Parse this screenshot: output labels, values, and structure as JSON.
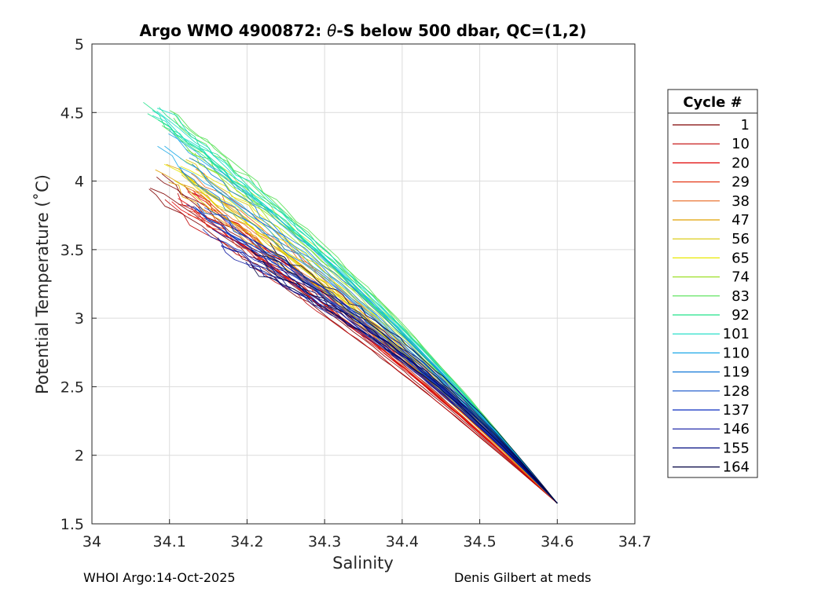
{
  "chart_data": {
    "type": "line",
    "title_prefix": "Argo WMO 4900872: ",
    "title_theta": "θ",
    "title_suffix": "-S below 500 dbar,  QC=(1,2)",
    "xlabel": "Salinity",
    "ylabel": "Potential Temperature (˚C)",
    "xlim": [
      34,
      34.7
    ],
    "ylim": [
      1.5,
      5
    ],
    "xticks": [
      "34",
      "34.1",
      "34.2",
      "34.3",
      "34.4",
      "34.5",
      "34.6",
      "34.7"
    ],
    "yticks": [
      "1.5",
      "2",
      "2.5",
      "3",
      "3.5",
      "4",
      "4.5",
      "5"
    ],
    "grid": true,
    "legend_title": "Cycle #",
    "legend_position": "right",
    "legend": [
      {
        "label": "1",
        "color": "#7f0000"
      },
      {
        "label": "10",
        "color": "#c00000"
      },
      {
        "label": "20",
        "color": "#e00000"
      },
      {
        "label": "29",
        "color": "#e53a1a"
      },
      {
        "label": "38",
        "color": "#e8661f"
      },
      {
        "label": "47",
        "color": "#e0a000"
      },
      {
        "label": "56",
        "color": "#d8c800"
      },
      {
        "label": "65",
        "color": "#e8e800"
      },
      {
        "label": "74",
        "color": "#9ee02a"
      },
      {
        "label": "83",
        "color": "#50e050"
      },
      {
        "label": "92",
        "color": "#20e28a"
      },
      {
        "label": "101",
        "color": "#12dcc4"
      },
      {
        "label": "110",
        "color": "#1aa8e8"
      },
      {
        "label": "119",
        "color": "#1478d8"
      },
      {
        "label": "128",
        "color": "#1050c8"
      },
      {
        "label": "137",
        "color": "#0a2cc0"
      },
      {
        "label": "146",
        "color": "#0a14a0"
      },
      {
        "label": "155",
        "color": "#000a80"
      },
      {
        "label": "164",
        "color": "#000040"
      }
    ],
    "series_envelope": {
      "deep_point": [
        34.6,
        1.65
      ],
      "upper_ends": [
        {
          "cycle": "1",
          "s": 34.08,
          "t": 3.95
        },
        {
          "cycle": "10",
          "s": 34.1,
          "t": 3.93
        },
        {
          "cycle": "20",
          "s": 34.12,
          "t": 3.9
        },
        {
          "cycle": "29",
          "s": 34.14,
          "t": 3.85
        },
        {
          "cycle": "38",
          "s": 34.12,
          "t": 4.02
        },
        {
          "cycle": "47",
          "s": 34.1,
          "t": 4.05
        },
        {
          "cycle": "56",
          "s": 34.12,
          "t": 4.08
        },
        {
          "cycle": "65",
          "s": 34.11,
          "t": 4.12
        },
        {
          "cycle": "74",
          "s": 34.13,
          "t": 4.2
        },
        {
          "cycle": "83",
          "s": 34.1,
          "t": 4.45
        },
        {
          "cycle": "92",
          "s": 34.08,
          "t": 4.5
        },
        {
          "cycle": "101",
          "s": 34.09,
          "t": 4.52
        },
        {
          "cycle": "110",
          "s": 34.09,
          "t": 4.3
        },
        {
          "cycle": "119",
          "s": 34.12,
          "t": 4.1
        },
        {
          "cycle": "128",
          "s": 34.14,
          "t": 3.75
        },
        {
          "cycle": "137",
          "s": 34.15,
          "t": 3.7
        },
        {
          "cycle": "146",
          "s": 34.17,
          "t": 3.6
        },
        {
          "cycle": "155",
          "s": 34.2,
          "t": 3.5
        },
        {
          "cycle": "164",
          "s": 34.22,
          "t": 3.45
        }
      ]
    }
  },
  "footer": {
    "left": "WHOI Argo:14-Oct-2025",
    "right": "Denis Gilbert at meds"
  }
}
